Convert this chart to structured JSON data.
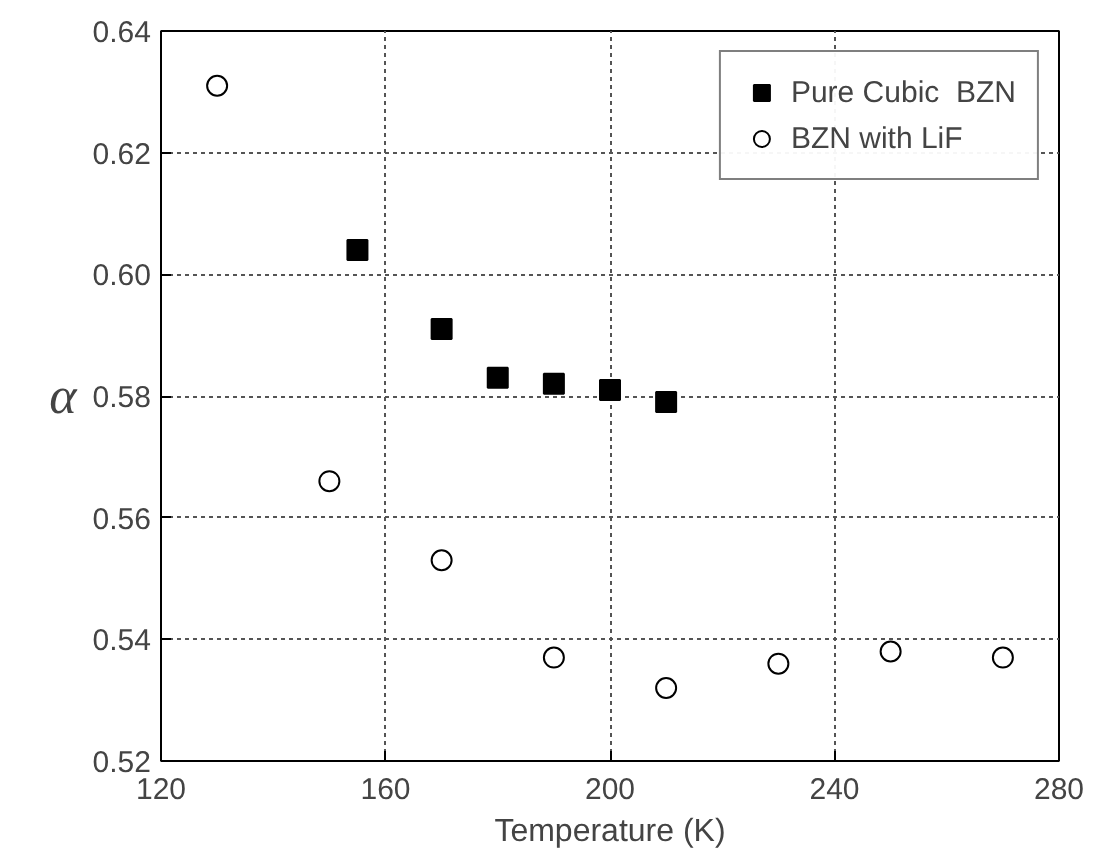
{
  "chart_data": {
    "type": "scatter",
    "xlabel": "Temperature (K)",
    "ylabel": "α",
    "xlim": [
      120,
      280
    ],
    "xticks": [
      120,
      160,
      200,
      240,
      280
    ],
    "ylim": [
      0.52,
      0.64
    ],
    "yticks": [
      {
        "value": 0.52,
        "label": "0.52"
      },
      {
        "value": 0.54,
        "label": "0.54"
      },
      {
        "value": 0.56,
        "label": "0.56"
      },
      {
        "value": 0.58,
        "label": "0.58"
      },
      {
        "value": 0.6,
        "label": "0.60"
      },
      {
        "value": 0.62,
        "label": "0.62"
      },
      {
        "value": 0.64,
        "label": "0.64"
      }
    ],
    "grid": true,
    "legend": "top right",
    "series": [
      {
        "name": "Pure Cubic  BZN",
        "color": "#000000",
        "marker": "square",
        "x": [
          155,
          170,
          180,
          190,
          200,
          210
        ],
        "values": [
          0.604,
          0.591,
          0.583,
          0.582,
          0.581,
          0.579
        ]
      },
      {
        "name": "BZN with LiF",
        "color": "#000000",
        "marker": "circle",
        "x": [
          130,
          150,
          170,
          190,
          210,
          230,
          250,
          270
        ],
        "values": [
          0.631,
          0.566,
          0.553,
          0.537,
          0.532,
          0.536,
          0.538,
          0.537
        ]
      }
    ]
  }
}
